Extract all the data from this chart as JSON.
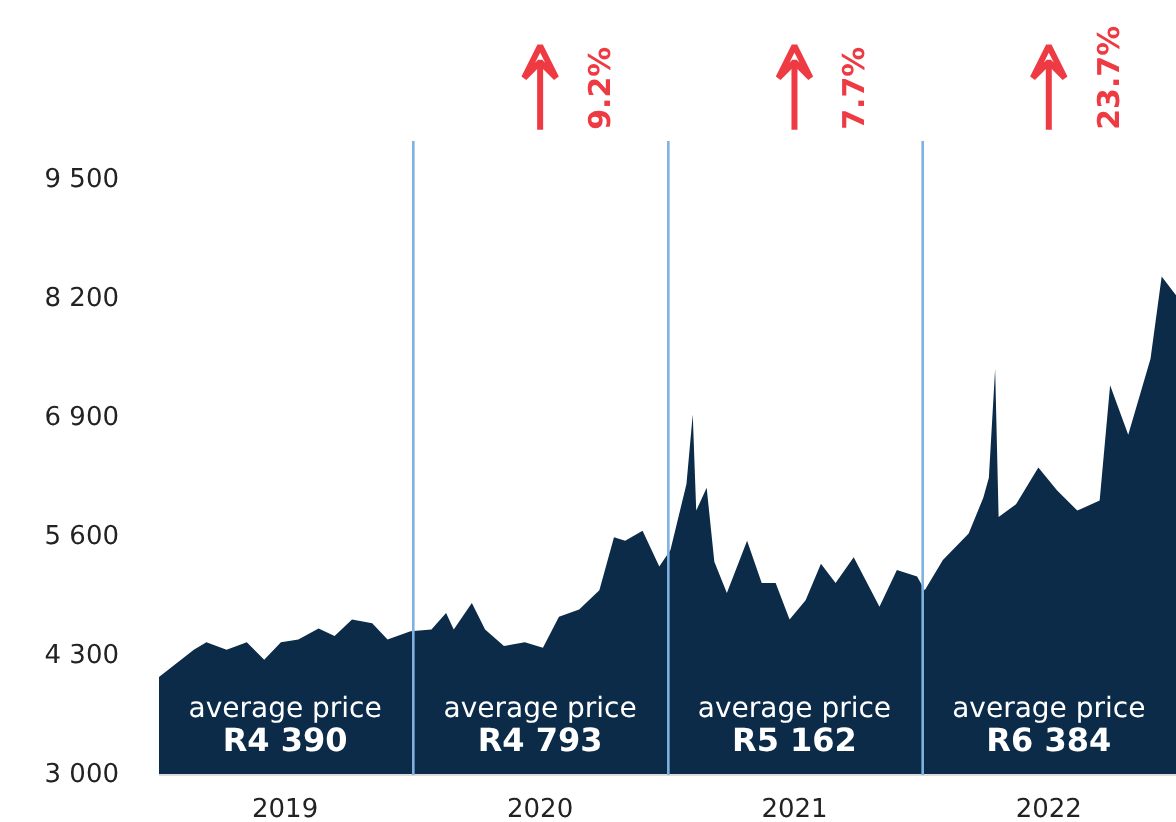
{
  "chart_data": {
    "type": "area",
    "color": "#0b2b48",
    "x": [
      "2019-01-01",
      "2019-02-20",
      "2019-03-10",
      "2019-04-08",
      "2019-05-07",
      "2019-06-01",
      "2019-06-25",
      "2019-07-20",
      "2019-08-18",
      "2019-09-10",
      "2019-10-05",
      "2019-11-03",
      "2019-11-25",
      "2019-12-28",
      "2020-01-27",
      "2020-02-17",
      "2020-02-28",
      "2020-03-25",
      "2020-04-13",
      "2020-05-10",
      "2020-06-09",
      "2020-07-05",
      "2020-07-28",
      "2020-08-26",
      "2020-09-24",
      "2020-10-15",
      "2020-10-31",
      "2020-11-25",
      "2020-12-19",
      "2021-01-04",
      "2021-01-27",
      "2021-02-05",
      "2021-02-10",
      "2021-02-25",
      "2021-03-08",
      "2021-03-26",
      "2021-04-24",
      "2021-05-15",
      "2021-06-04",
      "2021-06-24",
      "2021-07-17",
      "2021-08-08",
      "2021-08-29",
      "2021-09-24",
      "2021-10-31",
      "2021-11-25",
      "2021-12-24",
      "2022-01-04",
      "2022-01-30",
      "2022-03-08",
      "2022-03-29",
      "2022-04-06",
      "2022-04-15",
      "2022-04-20",
      "2022-05-15",
      "2022-06-16",
      "2022-07-13",
      "2022-08-11",
      "2022-09-12",
      "2022-09-27",
      "2022-10-23",
      "2022-11-24",
      "2022-12-10",
      "2022-12-31"
    ],
    "values": [
      4070,
      4370,
      4450,
      4370,
      4450,
      4260,
      4450,
      4480,
      4600,
      4520,
      4700,
      4660,
      4480,
      4570,
      4590,
      4770,
      4590,
      4880,
      4590,
      4410,
      4450,
      4390,
      4730,
      4810,
      5020,
      5600,
      5560,
      5670,
      5280,
      5460,
      6180,
      6940,
      5890,
      6140,
      5330,
      4990,
      5560,
      5100,
      5100,
      4700,
      4910,
      5310,
      5100,
      5380,
      4840,
      5240,
      5170,
      5020,
      5350,
      5640,
      6030,
      6250,
      7440,
      5820,
      5960,
      6360,
      6110,
      5890,
      6000,
      7260,
      6720,
      7550,
      8450,
      8240
    ],
    "xlim": [
      "2019-01-01",
      "2023-01-01"
    ],
    "xticks": [
      {
        "value": "2019-07-01",
        "label": "2019"
      },
      {
        "value": "2020-07-01",
        "label": "2020"
      },
      {
        "value": "2021-07-01",
        "label": "2021"
      },
      {
        "value": "2022-07-01",
        "label": "2022"
      }
    ],
    "ylim": [
      3000,
      9930
    ],
    "yticks": [
      {
        "value": 3000,
        "label": "3 000"
      },
      {
        "value": 4300,
        "label": "4 300"
      },
      {
        "value": 5600,
        "label": "5 600"
      },
      {
        "value": 6900,
        "label": "6 900"
      },
      {
        "value": 8200,
        "label": "8 200"
      },
      {
        "value": 9500,
        "label": "9 500"
      }
    ],
    "grid": false,
    "ref_lines": [
      {
        "axis": "x",
        "value": "2020-01-01",
        "color": "#7fb2e0"
      },
      {
        "axis": "x",
        "value": "2021-01-01",
        "color": "#7fb2e0"
      },
      {
        "axis": "x",
        "value": "2022-01-01",
        "color": "#7fb2e0"
      }
    ],
    "annotations": [
      "9.2%",
      "7.7%",
      "23.7%",
      "average price\nR4 390",
      "average price\nR4 793",
      "average price\nR5 162",
      "average price\nR6 384"
    ]
  }
}
